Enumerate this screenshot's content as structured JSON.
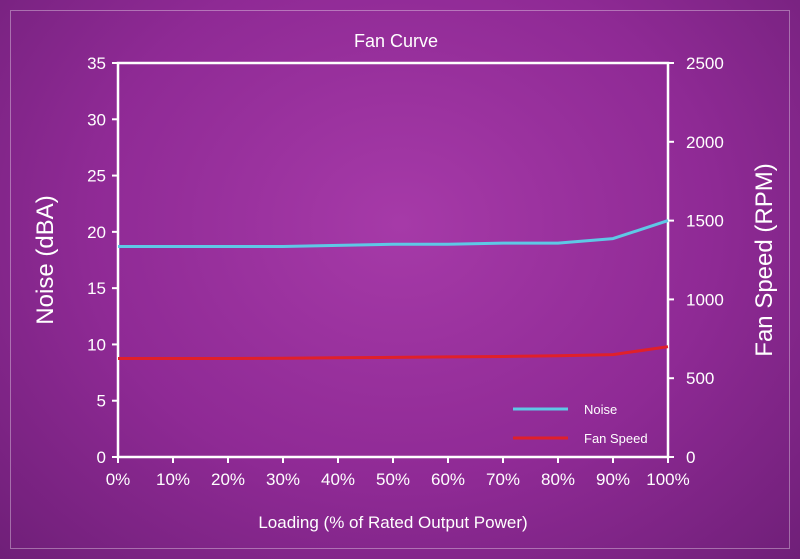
{
  "chart_data": {
    "type": "line",
    "title": "Fan Curve",
    "xlabel": "Loading (% of Rated Output Power)",
    "ylabel_left": "Noise (dBA)",
    "ylabel_right": "Fan Speed (RPM)",
    "x_tick_labels": [
      "0%",
      "10%",
      "20%",
      "30%",
      "40%",
      "50%",
      "60%",
      "70%",
      "80%",
      "90%",
      "100%"
    ],
    "x": [
      0,
      10,
      20,
      30,
      40,
      50,
      60,
      70,
      80,
      90,
      100
    ],
    "xlim": [
      0,
      100
    ],
    "ylim_left": [
      0,
      35
    ],
    "ylim_right": [
      0,
      2500
    ],
    "y_left_ticks": [
      0,
      5,
      10,
      15,
      20,
      25,
      30,
      35
    ],
    "y_right_ticks": [
      0,
      500,
      1000,
      1500,
      2000,
      2500
    ],
    "grid": false,
    "legend_position": "bottom-right",
    "series": [
      {
        "name": "Noise",
        "axis": "left",
        "color": "#5ec8e6",
        "values": [
          18.7,
          18.7,
          18.7,
          18.7,
          18.8,
          18.9,
          18.9,
          19.0,
          19.0,
          19.4,
          21.0
        ]
      },
      {
        "name": "Fan Speed",
        "axis": "right",
        "color": "#e0202a",
        "values": [
          625,
          625,
          625,
          627,
          630,
          632,
          635,
          638,
          642,
          650,
          700
        ]
      }
    ]
  }
}
